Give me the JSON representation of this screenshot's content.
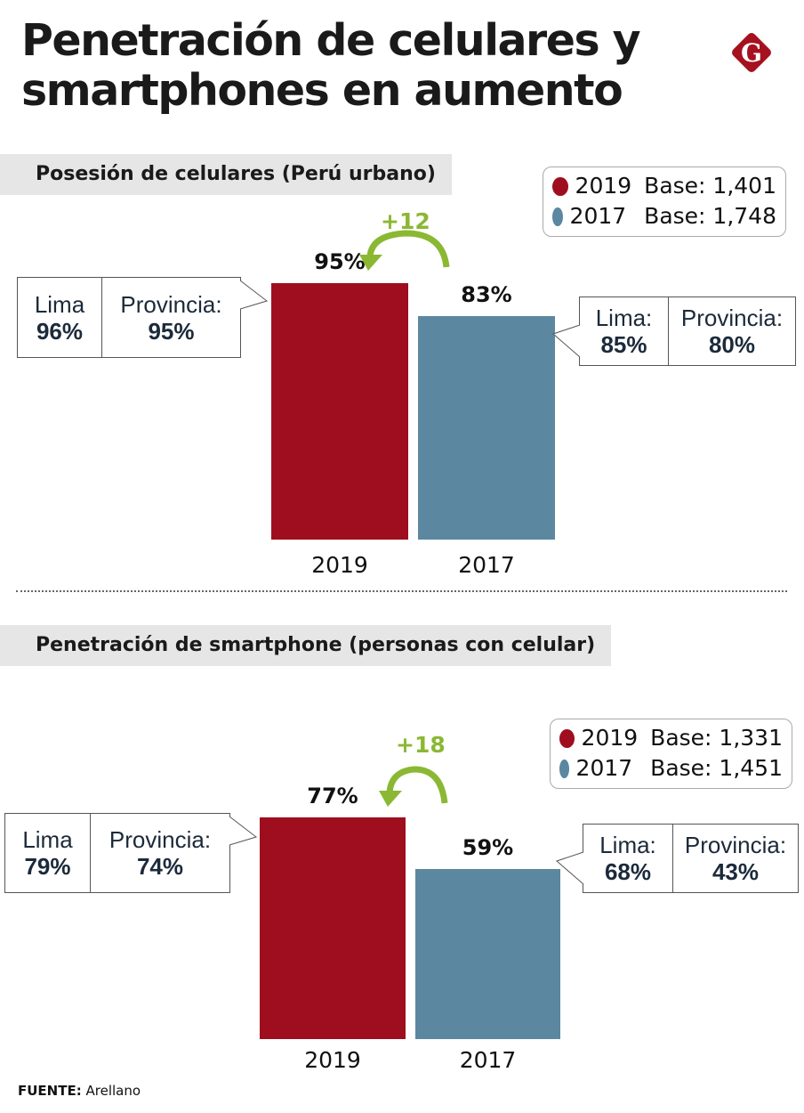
{
  "title_line1": "Penetración de celulares y",
  "title_line2": "smartphones en aumento",
  "logo_letter": "G",
  "colors": {
    "series_2019": "#9e0e1e",
    "series_2017": "#5b87a0",
    "delta": "#8ab833"
  },
  "chart_data": [
    {
      "type": "bar",
      "title": "Posesión de celulares (Perú urbano)",
      "categories": [
        "2019",
        "2017"
      ],
      "values": [
        95,
        83
      ],
      "value_labels": [
        "95%",
        "83%"
      ],
      "ylim": [
        0,
        100
      ],
      "delta_label": "+12",
      "legend": [
        {
          "year": "2019",
          "base": "Base: 1,401"
        },
        {
          "year": "2017",
          "base": "Base: 1,748"
        }
      ],
      "legend_placement": "top-right",
      "breakdown": [
        {
          "lima_label": "Lima",
          "lima_value": "96%",
          "prov_label": "Provincia:",
          "prov_value": "95%"
        },
        {
          "lima_label": "Lima:",
          "lima_value": "85%",
          "prov_label": "Provincia:",
          "prov_value": "80%"
        }
      ]
    },
    {
      "type": "bar",
      "title": "Penetración de smartphone (personas con celular)",
      "categories": [
        "2019",
        "2017"
      ],
      "values": [
        77,
        59
      ],
      "value_labels": [
        "77%",
        "59%"
      ],
      "ylim": [
        0,
        100
      ],
      "delta_label": "+18",
      "legend": [
        {
          "year": "2019",
          "base": "Base: 1,331"
        },
        {
          "year": "2017",
          "base": "Base: 1,451"
        }
      ],
      "legend_placement": "top-right",
      "breakdown": [
        {
          "lima_label": "Lima",
          "lima_value": "79%",
          "prov_label": "Provincia:",
          "prov_value": "74%"
        },
        {
          "lima_label": "Lima:",
          "lima_value": "68%",
          "prov_label": "Provincia:",
          "prov_value": "43%"
        }
      ]
    }
  ],
  "source_label": "FUENTE:",
  "source_value": "Arellano"
}
